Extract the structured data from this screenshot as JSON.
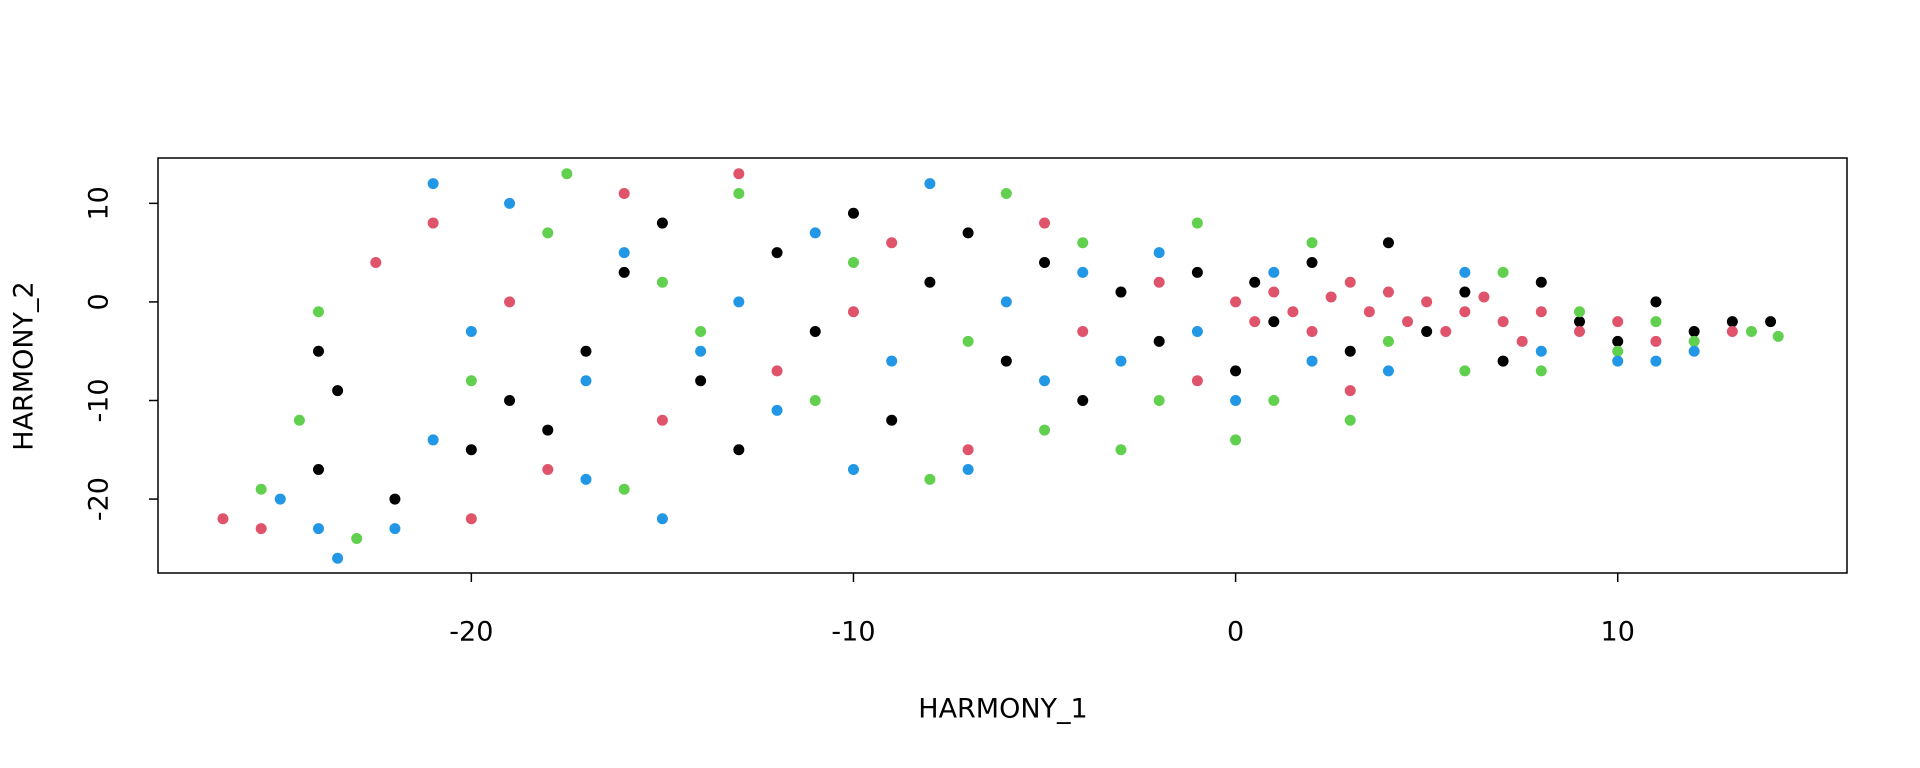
{
  "chart_data": {
    "type": "scatter",
    "x_label": "HARMONY_1",
    "y_label": "HARMONY_2",
    "xlim": [
      -28.2,
      16.0
    ],
    "ylim": [
      -27.5,
      14.6
    ],
    "xticks": [
      -20,
      -10,
      0,
      10
    ],
    "yticks": [
      -20,
      -10,
      0,
      10
    ],
    "grid": false,
    "series": [
      {
        "color": "#000000",
        "x": [
          -24,
          -23.5,
          -24,
          -22,
          -20,
          -19,
          -18,
          -17,
          -16,
          -15,
          -14,
          -13,
          -12,
          -11,
          -10,
          -9,
          -8,
          -7,
          -6,
          -5,
          -4,
          -3,
          -2,
          -1,
          0,
          0.5,
          1,
          2,
          3,
          4,
          5,
          6,
          7,
          8,
          9,
          10,
          11,
          12,
          13,
          14
        ],
        "y": [
          -5,
          -9,
          -17,
          -20,
          -15,
          -10,
          -13,
          -5,
          3,
          8,
          -8,
          -15,
          5,
          -3,
          9,
          -12,
          2,
          7,
          -6,
          4,
          -10,
          1,
          -4,
          3,
          -7,
          2,
          -2,
          4,
          -5,
          6,
          -3,
          1,
          -6,
          2,
          -2,
          -4,
          0,
          -3,
          -2,
          -2
        ]
      },
      {
        "color": "#DF536B",
        "x": [
          -26.5,
          -25.5,
          -22.5,
          -21,
          -20,
          -19,
          -18,
          -16,
          -15,
          -13,
          -12,
          -10,
          -9,
          -7,
          -5,
          -4,
          -2,
          -1,
          0,
          0.5,
          1,
          1.5,
          2,
          2.5,
          3,
          3,
          3.5,
          4,
          4.5,
          5,
          5.5,
          6,
          6.5,
          7,
          7.5,
          8,
          9,
          10,
          11,
          13
        ],
        "y": [
          -22,
          -23,
          4,
          8,
          -22,
          0,
          -17,
          11,
          -12,
          13,
          -7,
          -1,
          6,
          -15,
          8,
          -3,
          2,
          -8,
          0,
          -2,
          1,
          -1,
          -3,
          0.5,
          2,
          -9,
          -1,
          1,
          -2,
          0,
          -3,
          -1,
          0.5,
          -2,
          -4,
          -1,
          -3,
          -2,
          -4,
          -3
        ]
      },
      {
        "color": "#61D04F",
        "x": [
          -25.5,
          -24.5,
          -24,
          -23,
          -20,
          -18,
          -17.5,
          -16,
          -15,
          -14,
          -13,
          -11,
          -10,
          -8,
          -7,
          -5,
          -4,
          -3,
          -2,
          -1,
          0,
          1,
          2,
          3,
          4,
          6,
          7,
          8,
          9,
          10,
          11,
          12,
          13.5,
          14.2,
          -6
        ],
        "y": [
          -19,
          -12,
          -1,
          -24,
          -8,
          7,
          13,
          -19,
          2,
          -3,
          11,
          -10,
          4,
          -18,
          -4,
          -13,
          6,
          -15,
          -10,
          8,
          -14,
          -10,
          6,
          -12,
          -4,
          -7,
          3,
          -7,
          -1,
          -5,
          -2,
          -4,
          -3,
          -3.5,
          11
        ]
      },
      {
        "color": "#2297E6",
        "x": [
          -25,
          -24,
          -23.5,
          -22,
          -21,
          -21,
          -20,
          -19,
          -17,
          -16,
          -15,
          -14,
          -13,
          -12,
          -11,
          -10,
          -9,
          -8,
          -7,
          -6,
          -5,
          -4,
          -3,
          -2,
          -1,
          0,
          1,
          2,
          4,
          6,
          8,
          10,
          11,
          12,
          -17
        ],
        "y": [
          -20,
          -23,
          -26,
          -23,
          12,
          -14,
          -3,
          10,
          -8,
          5,
          -22,
          -5,
          0,
          -11,
          7,
          -17,
          -6,
          12,
          -17,
          0,
          -8,
          3,
          -6,
          5,
          -3,
          -10,
          3,
          -6,
          -7,
          3,
          -5,
          -6,
          -6,
          -5,
          -18
        ]
      }
    ]
  }
}
